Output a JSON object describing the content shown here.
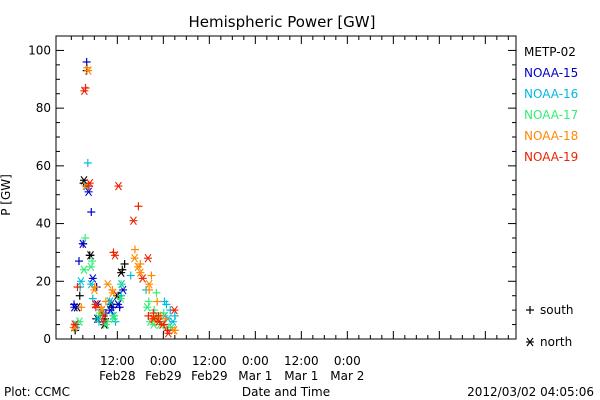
{
  "chart_data": {
    "type": "scatter",
    "title": "Hemispheric Power [GW]",
    "xlabel": "Date and Time",
    "ylabel": "P [GW]",
    "ylim": [
      0,
      105
    ],
    "xlim_hours": [
      -4,
      116
    ],
    "yticks": [
      0,
      20,
      40,
      60,
      80,
      100
    ],
    "xticks": [
      {
        "h": 12,
        "time": "12:00",
        "date": "Feb28"
      },
      {
        "h": 24,
        "time": "0:00",
        "date": "Feb29"
      },
      {
        "h": 36,
        "time": "12:00",
        "date": "Feb29"
      },
      {
        "h": 48,
        "time": "0:00",
        "date": "Mar 1"
      },
      {
        "h": 60,
        "time": "12:00",
        "date": "Mar 1"
      },
      {
        "h": 72,
        "time": "0:00",
        "date": "Mar 2"
      }
    ],
    "legend_placement": "right",
    "marker_legend": [
      {
        "symbol": "+",
        "label": "south"
      },
      {
        "symbol": "*",
        "label": "north"
      }
    ],
    "series": [
      {
        "name": "METP-02",
        "color": "#000000",
        "south": [
          [
            1,
            3
          ],
          [
            2.2,
            15
          ],
          [
            3.2,
            54
          ],
          [
            4,
            93
          ],
          [
            4.8,
            29
          ],
          [
            6.5,
            7
          ],
          [
            8.8,
            7
          ],
          [
            10.4,
            12
          ],
          [
            12.2,
            15
          ],
          [
            13.3,
            24
          ],
          [
            13.9,
            26
          ]
        ],
        "north": [
          [
            1.5,
            11
          ],
          [
            3.3,
            55
          ],
          [
            5,
            29
          ],
          [
            6.8,
            7
          ],
          [
            8.6,
            5
          ],
          [
            10.3,
            12
          ],
          [
            12,
            15
          ],
          [
            13,
            23
          ]
        ]
      },
      {
        "name": "NOAA-15",
        "color": "#0000cc",
        "south": [
          [
            0.7,
            12
          ],
          [
            2,
            27
          ],
          [
            3.1,
            33
          ],
          [
            4,
            96
          ],
          [
            5.2,
            44
          ],
          [
            6.6,
            18
          ],
          [
            9,
            9
          ],
          [
            10.9,
            11
          ],
          [
            12.6,
            11
          ]
        ],
        "north": [
          [
            0.8,
            11
          ],
          [
            3,
            33
          ],
          [
            4.5,
            51
          ],
          [
            5.6,
            21
          ],
          [
            6.8,
            12
          ],
          [
            8,
            9
          ],
          [
            10.2,
            10
          ],
          [
            12.2,
            12
          ],
          [
            13.5,
            17
          ]
        ]
      },
      {
        "name": "NOAA-16",
        "color": "#00bbdd",
        "south": [
          [
            1.2,
            4
          ],
          [
            2.3,
            18
          ],
          [
            4.3,
            61
          ],
          [
            5.6,
            14
          ],
          [
            7.2,
            6
          ],
          [
            8.5,
            9
          ],
          [
            10,
            13
          ],
          [
            11.5,
            6
          ],
          [
            13,
            15
          ],
          [
            15.5,
            22
          ],
          [
            19.5,
            17
          ],
          [
            24.3,
            13
          ],
          [
            24.8,
            12
          ],
          [
            25.8,
            10
          ],
          [
            27,
            8
          ]
        ],
        "north": [
          [
            1.3,
            5
          ],
          [
            2.5,
            20
          ],
          [
            4.1,
            53
          ],
          [
            5.2,
            19
          ],
          [
            7,
            7
          ],
          [
            8.7,
            6
          ],
          [
            10.1,
            13
          ],
          [
            11,
            8
          ],
          [
            13.1,
            19
          ],
          [
            24.3,
            8
          ],
          [
            25.2,
            7
          ],
          [
            26.5,
            6
          ]
        ]
      },
      {
        "name": "NOAA-17",
        "color": "#33ee77",
        "south": [
          [
            1.7,
            6
          ],
          [
            3.6,
            35
          ],
          [
            5.4,
            27
          ],
          [
            7.6,
            8
          ],
          [
            9.4,
            6
          ],
          [
            11.2,
            8
          ],
          [
            13,
            19
          ],
          [
            20.2,
            13
          ],
          [
            21.6,
            10
          ],
          [
            22.2,
            16
          ],
          [
            23.2,
            8
          ],
          [
            24.1,
            9
          ]
        ],
        "north": [
          [
            2.1,
            6
          ],
          [
            3.3,
            24
          ],
          [
            5.1,
            25
          ],
          [
            7.5,
            9
          ],
          [
            9,
            5
          ],
          [
            11.1,
            7
          ],
          [
            12.9,
            14
          ],
          [
            19.8,
            11
          ],
          [
            20.6,
            6
          ],
          [
            21.5,
            5
          ],
          [
            22.5,
            8
          ],
          [
            23.2,
            5
          ],
          [
            25,
            4
          ],
          [
            26.1,
            4
          ]
        ]
      },
      {
        "name": "NOAA-18",
        "color": "#ff8800",
        "south": [
          [
            0.6,
            4
          ],
          [
            2.6,
            11
          ],
          [
            4.2,
            94
          ],
          [
            6.1,
            18
          ],
          [
            7.8,
            11
          ],
          [
            9,
            13
          ],
          [
            10.7,
            17
          ],
          [
            16.6,
            31
          ],
          [
            18,
            26
          ],
          [
            20.3,
            17
          ],
          [
            20.9,
            22
          ],
          [
            22.4,
            13
          ],
          [
            23.3,
            8
          ],
          [
            24.6,
            7
          ],
          [
            27,
            3
          ]
        ],
        "north": [
          [
            0.8,
            4
          ],
          [
            3.8,
            53
          ],
          [
            4.4,
            93
          ],
          [
            6,
            17
          ],
          [
            7.9,
            10
          ],
          [
            9.5,
            19
          ],
          [
            10.8,
            16
          ],
          [
            16.5,
            28
          ],
          [
            17.4,
            25
          ],
          [
            18,
            23
          ],
          [
            20.3,
            19
          ],
          [
            21.2,
            7
          ],
          [
            22.5,
            7
          ],
          [
            23.8,
            5
          ],
          [
            26.8,
            3
          ]
        ]
      },
      {
        "name": "NOAA-19",
        "color": "#ee2200",
        "south": [
          [
            1.6,
            18
          ],
          [
            3.7,
            87
          ],
          [
            4.6,
            53
          ],
          [
            6.4,
            11
          ],
          [
            8.3,
            6
          ],
          [
            11,
            30
          ],
          [
            17.5,
            46
          ],
          [
            20.1,
            8
          ],
          [
            21.4,
            9
          ],
          [
            22.7,
            8
          ],
          [
            24.2,
            5
          ],
          [
            25.1,
            3
          ]
        ],
        "north": [
          [
            0.9,
            5
          ],
          [
            3.4,
            86
          ],
          [
            4.8,
            54
          ],
          [
            6.3,
            12
          ],
          [
            8.5,
            8
          ],
          [
            11.4,
            29
          ],
          [
            12.3,
            53
          ],
          [
            16.2,
            41
          ],
          [
            18.6,
            21
          ],
          [
            20,
            28
          ],
          [
            21.5,
            7
          ],
          [
            22.8,
            6
          ],
          [
            23.8,
            5
          ],
          [
            25.3,
            2
          ],
          [
            26.9,
            10
          ]
        ]
      }
    ]
  },
  "footer": {
    "left": "Plot: CCMC",
    "right": "2012/03/02 04:05:06"
  }
}
